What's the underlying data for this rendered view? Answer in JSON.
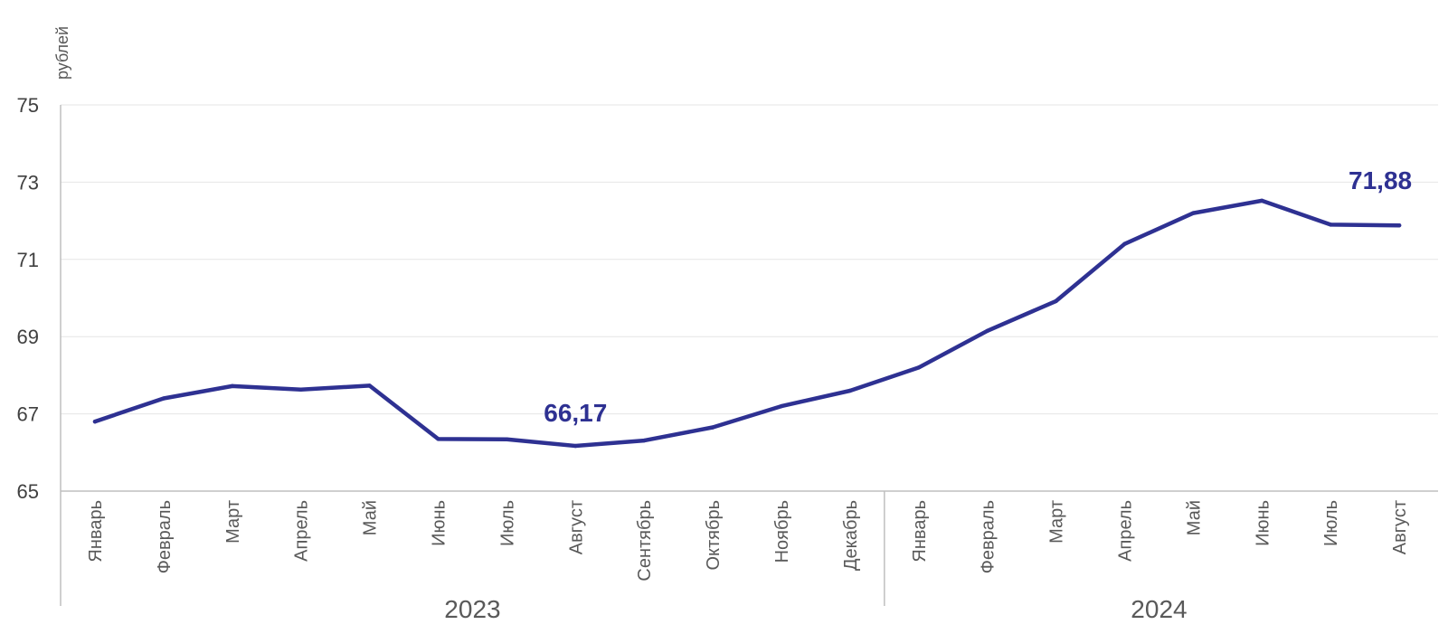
{
  "chart_data": {
    "type": "line",
    "ylabel": "рублей",
    "ylim": [
      65,
      75
    ],
    "yticks": [
      "75",
      "73",
      "71",
      "69",
      "67",
      "65"
    ],
    "categories": [
      "Январь",
      "Февраль",
      "Март",
      "Апрель",
      "Май",
      "Июнь",
      "Июль",
      "Август",
      "Сентябрь",
      "Октябрь",
      "Ноябрь",
      "Декабрь",
      "Январь",
      "Февраль",
      "Март",
      "Апрель",
      "Май",
      "Июнь",
      "Июль",
      "Август"
    ],
    "groups": [
      {
        "label": "2023",
        "count": 12
      },
      {
        "label": "2024",
        "count": 8
      }
    ],
    "series": [
      {
        "values": [
          66.8,
          67.4,
          67.72,
          67.63,
          67.73,
          66.35,
          66.34,
          66.17,
          66.31,
          66.65,
          67.2,
          67.6,
          68.2,
          69.15,
          69.92,
          71.4,
          72.2,
          72.52,
          71.9,
          71.88
        ],
        "color": "#2E3192"
      }
    ],
    "annotations": [
      {
        "index": 7,
        "text": "66,17"
      },
      {
        "index": 19,
        "text": "71,88"
      }
    ],
    "grid": true,
    "legend": "none"
  }
}
